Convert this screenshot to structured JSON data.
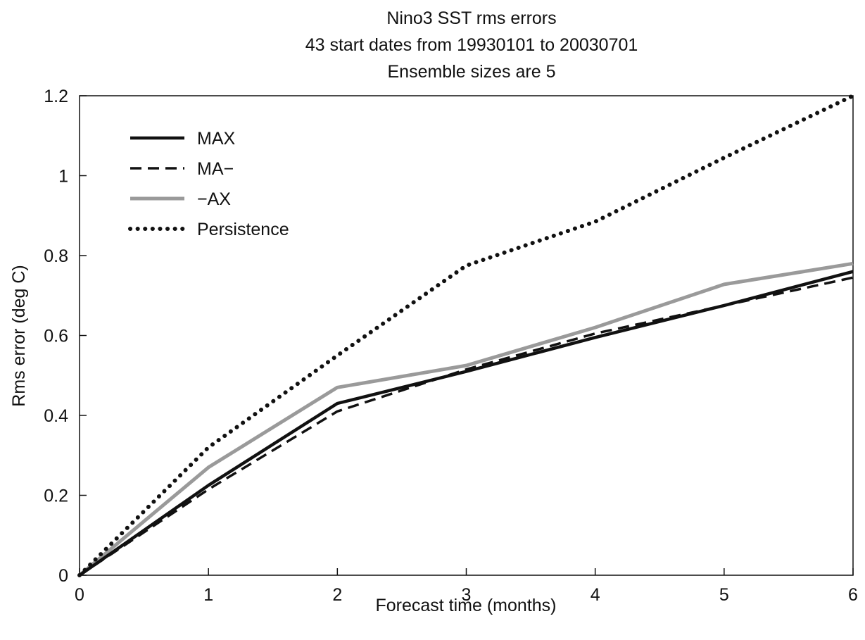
{
  "chart_data": {
    "type": "line",
    "title_lines": [
      "Nino3 SST rms errors",
      "43 start dates from 19930101 to 20030701",
      "Ensemble sizes are  5"
    ],
    "xlabel": "Forecast time (months)",
    "ylabel": "Rms error (deg C)",
    "xlim": [
      0,
      6
    ],
    "ylim": [
      0,
      1.2
    ],
    "xticks": [
      0,
      1,
      2,
      3,
      4,
      5,
      6
    ],
    "xtick_labels": [
      "0",
      "1",
      "2",
      "3",
      "4",
      "5",
      "6"
    ],
    "yticks": [
      0,
      0.2,
      0.4,
      0.6,
      0.8,
      1.0,
      1.2
    ],
    "ytick_labels": [
      "0",
      "0.2",
      "0.4",
      "0.6",
      "0.8",
      "1",
      "1.2"
    ],
    "grid": false,
    "legend_position": "top-left",
    "x": [
      0,
      1,
      2,
      3,
      4,
      5,
      6
    ],
    "series": [
      {
        "name": "MAX",
        "values": [
          0,
          0.225,
          0.43,
          0.51,
          0.595,
          0.675,
          0.76
        ],
        "color": "#111111",
        "style": "solid"
      },
      {
        "name": "MA−",
        "values": [
          0,
          0.215,
          0.41,
          0.515,
          0.605,
          0.675,
          0.745
        ],
        "color": "#111111",
        "style": "dashed"
      },
      {
        "name": "−AX",
        "values": [
          0,
          0.27,
          0.47,
          0.525,
          0.62,
          0.728,
          0.78
        ],
        "color": "#9a9a9a",
        "style": "solid"
      },
      {
        "name": "Persistence",
        "values": [
          0,
          0.32,
          0.55,
          0.775,
          0.885,
          1.045,
          1.2
        ],
        "color": "#111111",
        "style": "dotted"
      }
    ]
  }
}
